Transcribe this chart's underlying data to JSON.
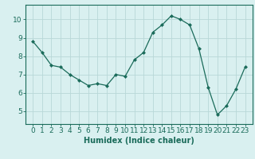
{
  "x": [
    0,
    1,
    2,
    3,
    4,
    5,
    6,
    7,
    8,
    9,
    10,
    11,
    12,
    13,
    14,
    15,
    16,
    17,
    18,
    19,
    20,
    21,
    22,
    23
  ],
  "y": [
    8.8,
    8.2,
    7.5,
    7.4,
    7.0,
    6.7,
    6.4,
    6.5,
    6.4,
    7.0,
    6.9,
    7.8,
    8.2,
    9.3,
    9.7,
    10.2,
    10.0,
    9.7,
    8.4,
    6.3,
    4.8,
    5.3,
    6.2,
    7.4
  ],
  "line_color": "#1a6b5a",
  "marker": "D",
  "marker_size": 2.0,
  "bg_color": "#d9f0f0",
  "grid_color": "#b8d8d8",
  "xlabel": "Humidex (Indice chaleur)",
  "ylim": [
    4.3,
    10.8
  ],
  "yticks": [
    5,
    6,
    7,
    8,
    9,
    10
  ],
  "xticks": [
    0,
    1,
    2,
    3,
    4,
    5,
    6,
    7,
    8,
    9,
    10,
    11,
    12,
    13,
    14,
    15,
    16,
    17,
    18,
    19,
    20,
    21,
    22,
    23
  ],
  "label_fontsize": 7,
  "tick_fontsize": 6.5
}
